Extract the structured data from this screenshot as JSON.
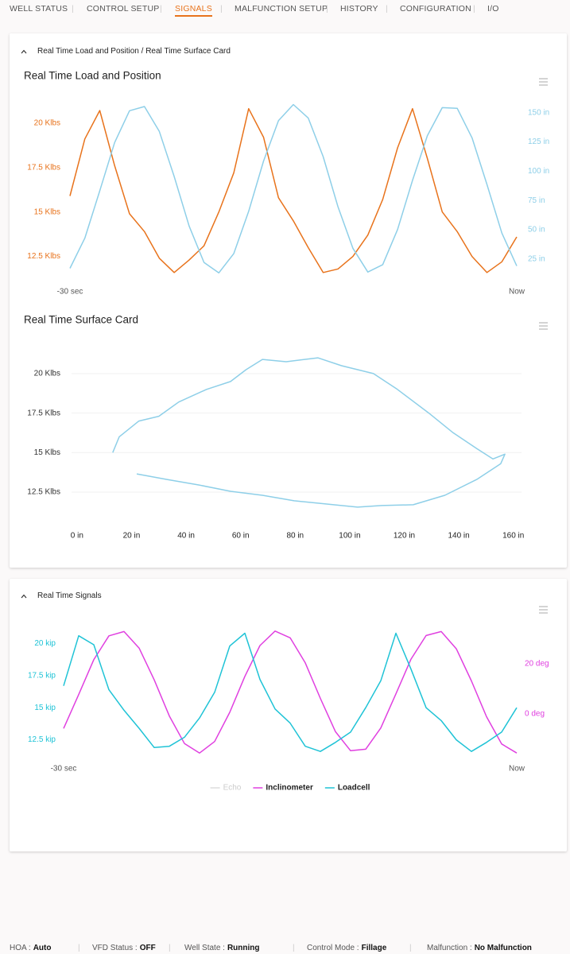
{
  "nav": {
    "items": [
      "WELL STATUS",
      "CONTROL SETUP",
      "SIGNALS",
      "MALFUNCTION SETUP",
      "HISTORY",
      "CONFIGURATION",
      "I/O"
    ],
    "active": 2
  },
  "panels": [
    {
      "title": "Real Time Load and Position / Real Time Surface Card"
    },
    {
      "title": "Real Time Signals"
    }
  ],
  "chart_data": [
    {
      "type": "line",
      "title": "Real Time Load and Position",
      "x": [
        -30,
        -29,
        -28,
        -27,
        -26,
        -25,
        -24,
        -23,
        -22,
        -21,
        -20,
        -19,
        -18,
        -17,
        -16,
        -15,
        -14,
        -13,
        -12,
        -11,
        -10,
        -9,
        -8,
        -7,
        -6,
        -5,
        -4,
        -3,
        -2,
        -1,
        0
      ],
      "xlim": [
        -30,
        0
      ],
      "xticks": [
        {
          "value": -30,
          "label": "-30 sec"
        },
        {
          "value": 0,
          "label": "Now"
        }
      ],
      "ylim": [
        11.5,
        21.1
      ],
      "yticks": [
        {
          "value": 12.5,
          "label": "12.5 Klbs"
        },
        {
          "value": 15,
          "label": "15 Klbs"
        },
        {
          "value": 17.5,
          "label": "17.5 Klbs"
        },
        {
          "value": 20,
          "label": "20 Klbs"
        }
      ],
      "y2lim": [
        12,
        158
      ],
      "y2ticks": [
        {
          "value": 25,
          "label": "25 in"
        },
        {
          "value": 50,
          "label": "50 in"
        },
        {
          "value": 75,
          "label": "75 in"
        },
        {
          "value": 100,
          "label": "100 in"
        },
        {
          "value": 125,
          "label": "125 in"
        },
        {
          "value": 150,
          "label": "150 in"
        }
      ],
      "grid": false,
      "series": [
        {
          "color": "#e8731c",
          "values": [
            15.9,
            19.1,
            20.7,
            17.6,
            14.9,
            13.9,
            12.4,
            11.6,
            12.3,
            13.1,
            15.0,
            17.2,
            20.8,
            19.2,
            15.8,
            14.5,
            13.0,
            11.6,
            11.8,
            12.5,
            13.7,
            15.7,
            18.6,
            20.8,
            18.0,
            15.0,
            13.9,
            12.5,
            11.6,
            12.2,
            13.6
          ]
        },
        {
          "color": "#8ecfe8",
          "axis": "y2",
          "values": [
            17.1,
            42.8,
            83.3,
            124.5,
            151.7,
            155.3,
            134.0,
            95.5,
            53.2,
            22.1,
            13.2,
            29.7,
            65.8,
            108.7,
            143.2,
            157.0,
            145.5,
            112.5,
            69.5,
            34.2,
            13.9,
            20.2,
            50.2,
            92.2,
            130.4,
            154.3,
            153.8,
            128.5,
            88.8,
            47.2,
            19.1
          ]
        }
      ]
    },
    {
      "type": "line",
      "title": "Real Time Surface Card",
      "xlim": [
        -2,
        163
      ],
      "xticks": [
        {
          "value": 0,
          "label": "0 in"
        },
        {
          "value": 20,
          "label": "20 in"
        },
        {
          "value": 40,
          "label": "40 in"
        },
        {
          "value": 60,
          "label": "60 in"
        },
        {
          "value": 80,
          "label": "80 in"
        },
        {
          "value": 100,
          "label": "100 in"
        },
        {
          "value": 120,
          "label": "120 in"
        },
        {
          "value": 140,
          "label": "140 in"
        },
        {
          "value": 160,
          "label": "160 in"
        }
      ],
      "ylim": [
        11,
        21.2
      ],
      "yticks": [
        {
          "value": 12.5,
          "label": "12.5 Klbs"
        },
        {
          "value": 15,
          "label": "15 Klbs"
        },
        {
          "value": 17.5,
          "label": "17.5 Klbs"
        },
        {
          "value": 20,
          "label": "20 Klbs"
        }
      ],
      "grid": true,
      "series": [
        {
          "color": "#8ecfe8",
          "x": [
            13.1,
            15.5,
            22.7,
            30,
            37.3,
            47.5,
            56.3,
            62,
            68,
            76.7,
            88.3,
            97,
            108.7,
            117.5,
            129,
            137.9,
            146.6,
            152.5,
            156.9,
            155.4,
            146.6,
            134.9,
            123.3,
            111.7,
            102.9,
            88.3,
            79.6,
            68,
            56.3,
            44.6,
            33,
            21.9
          ],
          "values": [
            15,
            16.0,
            17.0,
            17.3,
            18.2,
            19.0,
            19.5,
            20.25,
            20.9,
            20.75,
            21.0,
            20.5,
            20.0,
            19.0,
            17.5,
            16.26,
            15.25,
            14.6,
            14.9,
            14.3,
            13.3,
            12.3,
            11.7,
            11.65,
            11.55,
            11.8,
            11.95,
            12.3,
            12.55,
            12.95,
            13.3,
            13.65
          ]
        }
      ]
    },
    {
      "type": "line",
      "x": [
        -30,
        -29,
        -28,
        -27,
        -26,
        -25,
        -24,
        -23,
        -22,
        -21,
        -20,
        -19,
        -18,
        -17,
        -16,
        -15,
        -14,
        -13,
        -12,
        -11,
        -10,
        -9,
        -8,
        -7,
        -6,
        -5,
        -4,
        -3,
        -2,
        -1,
        0
      ],
      "xlim": [
        -30,
        0
      ],
      "xticks": [
        {
          "value": -30,
          "label": "-30 sec"
        },
        {
          "value": 0,
          "label": "Now"
        }
      ],
      "ylim": [
        11.3,
        21.2
      ],
      "yticks": [
        {
          "value": 12.5,
          "label": "12.5 kip"
        },
        {
          "value": 15,
          "label": "15 kip"
        },
        {
          "value": 17.5,
          "label": "17.5 kip"
        },
        {
          "value": 20,
          "label": "20 kip"
        }
      ],
      "y2lim": [
        -16.5,
        34.3
      ],
      "y2ticks": [
        {
          "value": 0,
          "label": "0 deg"
        },
        {
          "value": 20,
          "label": "20 deg"
        }
      ],
      "grid": false,
      "legend": "bottom",
      "series": [
        {
          "name": "Echo",
          "color": "#dddddd",
          "visible": false
        },
        {
          "name": "Inclinometer",
          "color": "#e040e0",
          "axis": "y2",
          "values": [
            -5.8,
            7.75,
            21.7,
            31.2,
            32.9,
            26.3,
            13.6,
            -0.8,
            -11.8,
            -15.6,
            -11.0,
            0.66,
            15.0,
            27.3,
            33.1,
            30.4,
            20.4,
            6.2,
            -7.1,
            -14.7,
            -14.1,
            -5.6,
            8.0,
            21.9,
            31.3,
            32.9,
            26.0,
            13.2,
            -1.1,
            -12.0,
            -15.6
          ]
        },
        {
          "name": "Loadcell",
          "color": "#1fc3d6",
          "values": [
            16.7,
            20.6,
            19.9,
            16.4,
            14.8,
            13.4,
            11.9,
            12.0,
            12.7,
            14.2,
            16.2,
            19.8,
            20.8,
            17.2,
            14.9,
            13.8,
            12.0,
            11.6,
            12.3,
            13.1,
            15.0,
            17.1,
            20.8,
            18.0,
            15.0,
            14.0,
            12.5,
            11.6,
            12.3,
            13.1,
            15.0
          ]
        }
      ]
    }
  ],
  "status_bar": [
    {
      "label": "HOA :",
      "value": "Auto"
    },
    {
      "label": "VFD Status :",
      "value": "OFF"
    },
    {
      "label": "Well State :",
      "value": "Running"
    },
    {
      "label": "Control Mode :",
      "value": "Fillage"
    },
    {
      "label": "Malfunction :",
      "value": "No Malfunction"
    }
  ]
}
